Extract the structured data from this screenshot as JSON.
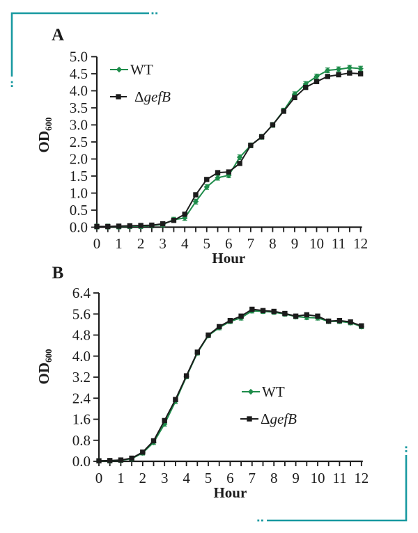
{
  "figure": {
    "background": "#ffffff",
    "axis_color": "#1c1c1c"
  },
  "decorations": {
    "corner_bracket_color": "#1899a0",
    "corner_brackets": [
      "top-left",
      "bottom-right"
    ],
    "bracket_style": "right-angle teal line with two small square dots trailing each open end"
  },
  "chart_data": [
    {
      "panel": "A",
      "type": "line",
      "xlabel": "Hour",
      "ylabel": "OD",
      "ylabel_subscript": "600",
      "xlim": [
        0,
        12
      ],
      "ylim": [
        0,
        5.0
      ],
      "xtick_label_step": 1,
      "xtick_minor_step": 0.5,
      "ytick_step": 0.5,
      "ytick_decimals": 1,
      "legend_position": "upper-left-inside",
      "x": [
        0,
        0.5,
        1,
        1.5,
        2,
        2.5,
        3,
        3.5,
        4,
        4.5,
        5,
        5.5,
        6,
        6.5,
        7,
        7.5,
        8,
        8.5,
        9,
        9.5,
        10,
        10.5,
        11,
        11.5,
        12
      ],
      "series": [
        {
          "label": "WT",
          "color": "#1e8c4a",
          "marker": "diamond",
          "error": 0.07,
          "values": [
            0.02,
            0.02,
            0.02,
            0.03,
            0.03,
            0.05,
            0.08,
            0.22,
            0.27,
            0.75,
            1.18,
            1.45,
            1.52,
            2.05,
            2.4,
            2.65,
            3.0,
            3.42,
            3.9,
            4.2,
            4.42,
            4.6,
            4.63,
            4.68,
            4.65
          ]
        },
        {
          "label": "ΔgefB",
          "label_prefix": "Δ",
          "label_italic": "gefB",
          "color": "#1c1c1c",
          "marker": "square",
          "error": 0.04,
          "values": [
            0.02,
            0.02,
            0.03,
            0.04,
            0.05,
            0.06,
            0.1,
            0.2,
            0.38,
            0.95,
            1.4,
            1.6,
            1.62,
            1.87,
            2.4,
            2.65,
            3.0,
            3.4,
            3.8,
            4.1,
            4.27,
            4.42,
            4.47,
            4.52,
            4.5
          ]
        }
      ]
    },
    {
      "panel": "B",
      "type": "line",
      "xlabel": "Hour",
      "ylabel": "OD",
      "ylabel_subscript": "600",
      "xlim": [
        0,
        12
      ],
      "ylim": [
        0,
        6.4
      ],
      "xtick_label_step": 1,
      "xtick_minor_step": 0.5,
      "ytick_step": 0.8,
      "ytick_decimals": 1,
      "legend_position": "middle-right-inside",
      "x": [
        0,
        0.5,
        1,
        1.5,
        2,
        2.5,
        3,
        3.5,
        4,
        4.5,
        5,
        5.5,
        6,
        6.5,
        7,
        7.5,
        8,
        8.5,
        9,
        9.5,
        10,
        10.5,
        11,
        11.5,
        12
      ],
      "series": [
        {
          "label": "WT",
          "color": "#1e8c4a",
          "marker": "diamond",
          "error": 0.08,
          "values": [
            0.02,
            0.02,
            0.04,
            0.1,
            0.32,
            0.72,
            1.42,
            2.28,
            3.22,
            4.12,
            4.78,
            5.08,
            5.32,
            5.45,
            5.72,
            5.7,
            5.67,
            5.6,
            5.5,
            5.47,
            5.45,
            5.32,
            5.32,
            5.27,
            5.12
          ]
        },
        {
          "label": "ΔgefB",
          "label_prefix": "Δ",
          "label_italic": "gefB",
          "color": "#1c1c1c",
          "marker": "square",
          "error": 0.05,
          "values": [
            0.02,
            0.03,
            0.05,
            0.12,
            0.35,
            0.78,
            1.55,
            2.35,
            3.25,
            4.15,
            4.8,
            5.12,
            5.35,
            5.52,
            5.78,
            5.73,
            5.7,
            5.62,
            5.52,
            5.57,
            5.52,
            5.33,
            5.35,
            5.3,
            5.15
          ]
        }
      ]
    }
  ]
}
